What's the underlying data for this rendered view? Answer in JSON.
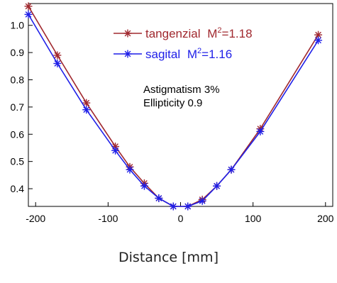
{
  "chart_data": {
    "type": "line",
    "title": "",
    "xlabel": "Distance [mm]",
    "ylabel": "",
    "xlim": [
      -210,
      210
    ],
    "ylim": [
      0.335,
      1.08
    ],
    "xticks": [
      -200,
      -100,
      0,
      100,
      200
    ],
    "yticks": [
      0.4,
      0.5,
      0.6,
      0.7,
      0.8,
      0.9,
      1.0
    ],
    "xtick_labels": [
      "-200",
      "-100",
      "0",
      "100",
      "200"
    ],
    "ytick_labels": [
      "0.4",
      "0.5",
      "0.6",
      "0.7",
      "0.8",
      "0.9",
      "1.0"
    ],
    "grid": false,
    "legend_position": "top-center",
    "series": [
      {
        "name": "tangenzial",
        "m2_label": "M",
        "m2_sup": "2",
        "m2_value": "=1.18",
        "color": "#a0282e",
        "x": [
          -210,
          -170,
          -130,
          -90,
          -70,
          -50,
          -30,
          -10,
          10,
          30,
          50,
          70,
          110,
          190
        ],
        "y": [
          1.07,
          0.89,
          0.715,
          0.555,
          0.48,
          0.42,
          0.365,
          0.335,
          0.335,
          0.36,
          0.41,
          0.47,
          0.62,
          0.965
        ]
      },
      {
        "name": "sagital",
        "m2_label": "M",
        "m2_sup": "2",
        "m2_value": "=1.16",
        "color": "#1f1fe8",
        "x": [
          -210,
          -170,
          -130,
          -90,
          -70,
          -50,
          -30,
          -10,
          10,
          30,
          50,
          70,
          110,
          190
        ],
        "y": [
          1.04,
          0.86,
          0.69,
          0.54,
          0.47,
          0.41,
          0.365,
          0.335,
          0.335,
          0.355,
          0.41,
          0.47,
          0.61,
          0.945
        ]
      }
    ],
    "annotations": [
      "Astigmatism 3%",
      "Ellipticity 0.9"
    ]
  }
}
